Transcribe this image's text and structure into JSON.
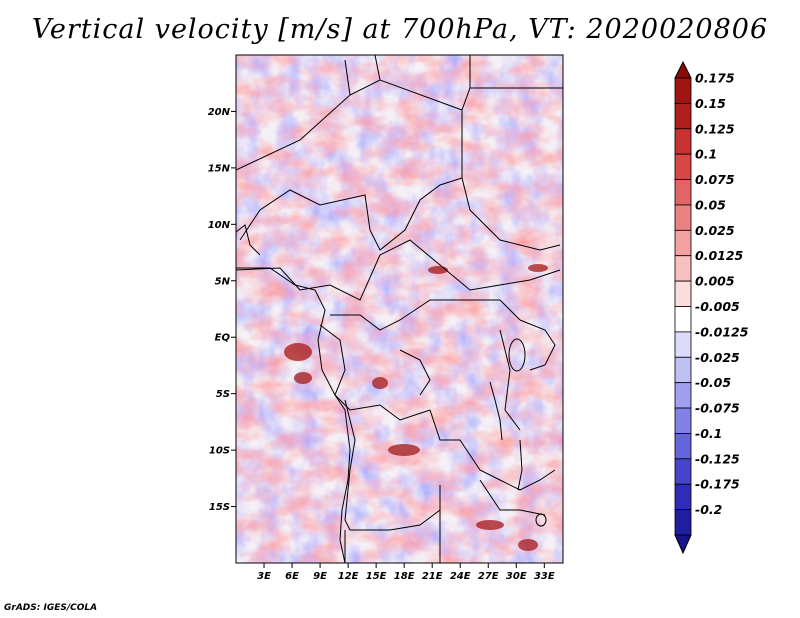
{
  "title": "Vertical velocity [m/s] at 700hPa, VT: 2020020806",
  "credit": "GrADS: IGES/COLA",
  "map": {
    "lon_range": [
      0,
      35
    ],
    "lat_range": [
      -20,
      25
    ],
    "lat_ticks": [
      {
        "value": 20,
        "label": "20N"
      },
      {
        "value": 15,
        "label": "15N"
      },
      {
        "value": 10,
        "label": "10N"
      },
      {
        "value": 5,
        "label": "5N"
      },
      {
        "value": 0,
        "label": "EQ"
      },
      {
        "value": -5,
        "label": "5S"
      },
      {
        "value": -10,
        "label": "10S"
      },
      {
        "value": -15,
        "label": "15S"
      }
    ],
    "lon_ticks": [
      {
        "value": 3,
        "label": "3E"
      },
      {
        "value": 6,
        "label": "6E"
      },
      {
        "value": 9,
        "label": "9E"
      },
      {
        "value": 12,
        "label": "12E"
      },
      {
        "value": 15,
        "label": "15E"
      },
      {
        "value": 18,
        "label": "18E"
      },
      {
        "value": 21,
        "label": "21E"
      },
      {
        "value": 24,
        "label": "24E"
      },
      {
        "value": 27,
        "label": "27E"
      },
      {
        "value": 30,
        "label": "30E"
      },
      {
        "value": 33,
        "label": "33E"
      }
    ]
  },
  "colorbar": {
    "levels": [
      {
        "label": "0.175",
        "color": "#a01414"
      },
      {
        "label": "0.15",
        "color": "#b01e1e"
      },
      {
        "label": "0.125",
        "color": "#c83232"
      },
      {
        "label": "0.1",
        "color": "#d84646"
      },
      {
        "label": "0.075",
        "color": "#e26464"
      },
      {
        "label": "0.05",
        "color": "#ea8282"
      },
      {
        "label": "0.025",
        "color": "#f2a0a0"
      },
      {
        "label": "0.0125",
        "color": "#f8c0c0"
      },
      {
        "label": "0.005",
        "color": "#fcdcdc"
      },
      {
        "label": "-0.005",
        "color": "#ffffff"
      },
      {
        "label": "-0.0125",
        "color": "#dcdcfa"
      },
      {
        "label": "-0.025",
        "color": "#c0c0f4"
      },
      {
        "label": "-0.05",
        "color": "#a0a0ee"
      },
      {
        "label": "-0.075",
        "color": "#8282e6"
      },
      {
        "label": "-0.1",
        "color": "#6464dc"
      },
      {
        "label": "-0.125",
        "color": "#4646cc"
      },
      {
        "label": "-0.175",
        "color": "#2d2db8"
      },
      {
        "label": "-0.2",
        "color": "#1e1ea0"
      }
    ],
    "top_color": "#8c0a0a",
    "bottom_color": "#14148c"
  }
}
